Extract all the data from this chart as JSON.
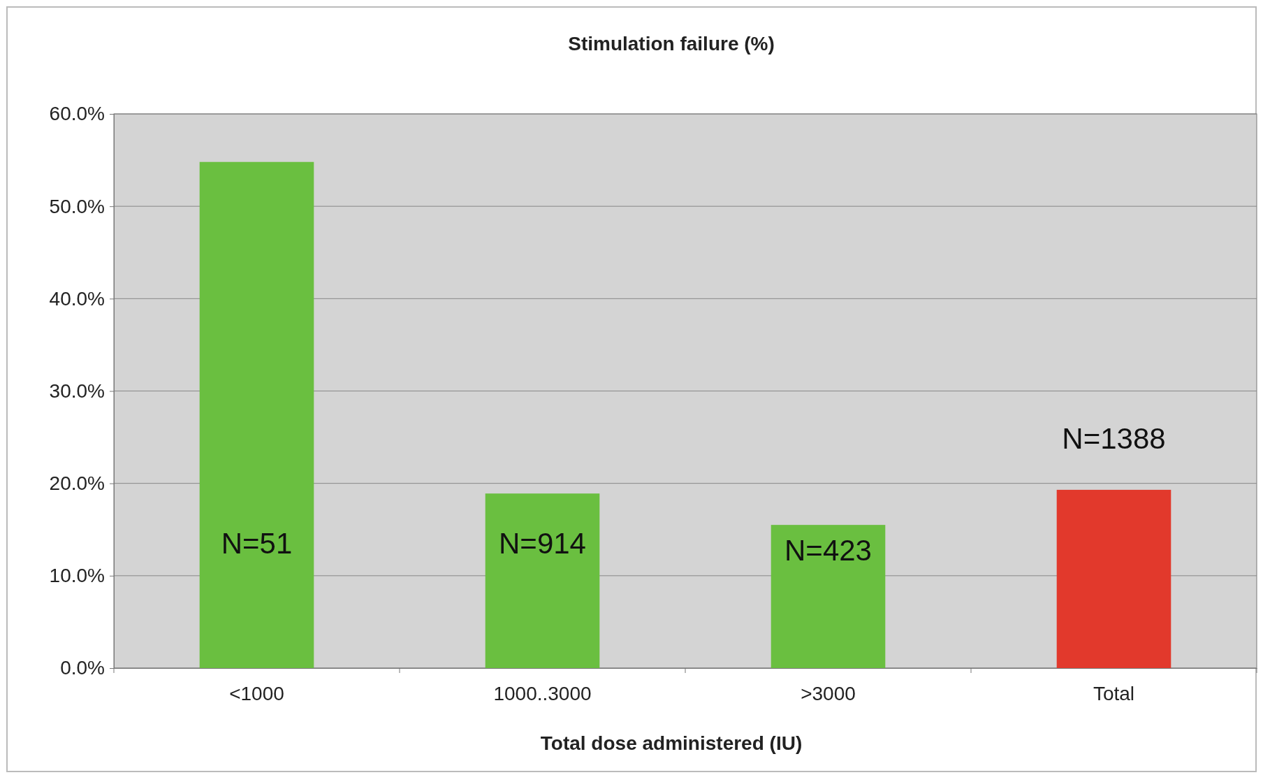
{
  "chart_data": {
    "type": "bar",
    "title": "Stimulation failure (%)",
    "xlabel": "Total dose administered (IU)",
    "categories": [
      "<1000",
      "1000..3000",
      ">3000",
      "Total"
    ],
    "values": [
      54.8,
      18.9,
      15.5,
      19.3
    ],
    "colors": [
      "#6abf40",
      "#6abf40",
      "#6abf40",
      "#e2392c"
    ],
    "ylim": [
      0,
      60
    ],
    "yticks": [
      {
        "value": 0,
        "label": "0.0%"
      },
      {
        "value": 10,
        "label": "10.0%"
      },
      {
        "value": 20,
        "label": "20.0%"
      },
      {
        "value": 30,
        "label": "30.0%"
      },
      {
        "value": 40,
        "label": "40.0%"
      },
      {
        "value": 50,
        "label": "50.0%"
      },
      {
        "value": 60,
        "label": "60.0%"
      }
    ],
    "grid": "y",
    "annotations": [
      "N=51",
      "N=914",
      "N=423",
      "N=1388"
    ]
  }
}
